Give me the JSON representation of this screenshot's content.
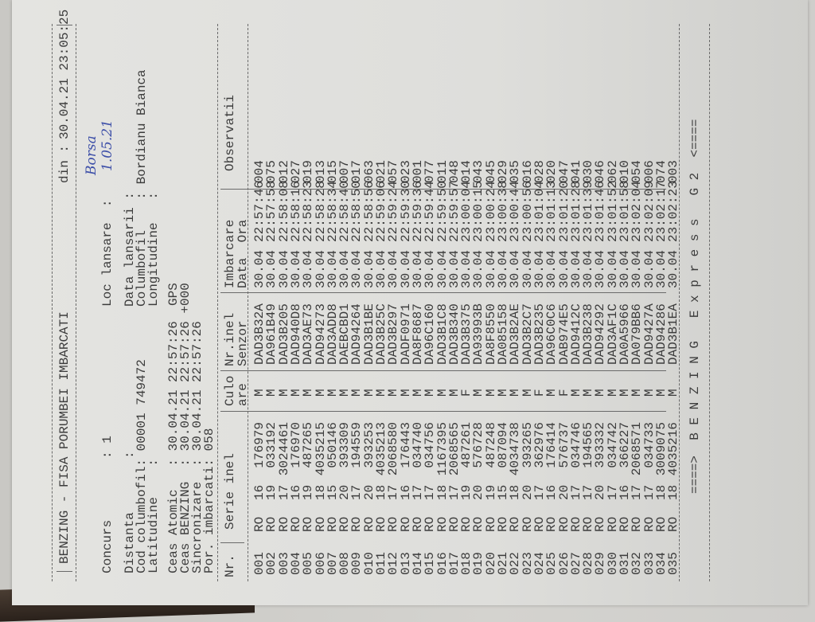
{
  "header": {
    "title": "BENZING - FISA PORUMBEI IMBARCATI",
    "din_label": "din :",
    "din_value": "30.04.21 23:05:25"
  },
  "info": {
    "concurs": "Concurs        : 1",
    "loc_lansare": "Loc lansare  :",
    "handwritten": [
      "Borsa",
      "1.05.21"
    ],
    "distanta": "Distanta       :",
    "cod_columbofil": "Cod columbofil: 00001 749472",
    "latitudine": "Latitudine    :",
    "data_lansarii": "Data lansarii :",
    "columbofil": "Columbofil    : Bordianu Bianca",
    "longitudine": "Longitudine   :",
    "ceas_atomic": "Ceas Atomic   : 30.04.21 22:57:26  GPS",
    "ceas_benzing": "Ceas BENZING  : 30.04.21 22:57:26 +000",
    "sincronizare": "Sincronizare  : 30.04.21 22:57:26",
    "por_imbarcati": "Por. imbarcati: 058"
  },
  "table": {
    "headers": {
      "nr": "Nr.",
      "serie": "Serie inel",
      "culoare_1": "Culo",
      "culoare_2": "are",
      "senzor_1": "Nr.inel",
      "senzor_2": "Senzor",
      "imbarcare_1": "Imbarcare",
      "imbarcare_2": "Data  Ora",
      "observatii": "Observatii"
    }
  },
  "rows": [
    {
      "nr": "001",
      "tara": "RO",
      "an": "16",
      "inel": "176979",
      "cul": "M",
      "senzor": "DAD3B32A",
      "data": "30.04",
      "ora": "22:57:46",
      "obs": "004"
    },
    {
      "nr": "002",
      "tara": "RO",
      "an": "19",
      "inel": "033192",
      "cul": "M",
      "senzor": "DA961B49",
      "data": "30.04",
      "ora": "22:57:58",
      "obs": "075"
    },
    {
      "nr": "003",
      "tara": "RO",
      "an": "17",
      "inel": "3024461",
      "cul": "M",
      "senzor": "DAD3B205",
      "data": "30.04",
      "ora": "22:58:08",
      "obs": "012"
    },
    {
      "nr": "004",
      "tara": "RO",
      "an": "16",
      "inel": "176970",
      "cul": "M",
      "senzor": "DAD940D8",
      "data": "30.04",
      "ora": "22:58:16",
      "obs": "027"
    },
    {
      "nr": "005",
      "tara": "RO",
      "an": "19",
      "inel": "487265",
      "cul": "M",
      "senzor": "DAD3AE73",
      "data": "30.04",
      "ora": "22:58:23",
      "obs": "019"
    },
    {
      "nr": "006",
      "tara": "RO",
      "an": "18",
      "inel": "4035215",
      "cul": "M",
      "senzor": "DAD94273",
      "data": "30.04",
      "ora": "22:58:28",
      "obs": "013"
    },
    {
      "nr": "007",
      "tara": "RO",
      "an": "15",
      "inel": "050146",
      "cul": "M",
      "senzor": "DAD3ADD8",
      "data": "30.04",
      "ora": "22:58:34",
      "obs": "015"
    },
    {
      "nr": "008",
      "tara": "RO",
      "an": "20",
      "inel": "393309",
      "cul": "M",
      "senzor": "DAEBCBD1",
      "data": "30.04",
      "ora": "22:58:40",
      "obs": "007"
    },
    {
      "nr": "009",
      "tara": "RO",
      "an": "17",
      "inel": "194559",
      "cul": "M",
      "senzor": "DAD94264",
      "data": "30.04",
      "ora": "22:58:50",
      "obs": "017"
    },
    {
      "nr": "010",
      "tara": "RO",
      "an": "20",
      "inel": "393253",
      "cul": "M",
      "senzor": "DAD3B1BE",
      "data": "30.04",
      "ora": "22:58:56",
      "obs": "063"
    },
    {
      "nr": "011",
      "tara": "RO",
      "an": "18",
      "inel": "4035213",
      "cul": "M",
      "senzor": "DAD3B25C",
      "data": "30.04",
      "ora": "22:59:06",
      "obs": "021"
    },
    {
      "nr": "012",
      "tara": "RO",
      "an": "17",
      "inel": "2068580",
      "cul": "M",
      "senzor": "DAD3B297",
      "data": "30.04",
      "ora": "22:59:24",
      "obs": "057"
    },
    {
      "nr": "013",
      "tara": "RO",
      "an": "16",
      "inel": "176443",
      "cul": "M",
      "senzor": "DADF0971",
      "data": "30.04",
      "ora": "22:59:30",
      "obs": "023"
    },
    {
      "nr": "014",
      "tara": "RO",
      "an": "17",
      "inel": "034740",
      "cul": "M",
      "senzor": "DA8F8687",
      "data": "30.04",
      "ora": "22:59:36",
      "obs": "001"
    },
    {
      "nr": "015",
      "tara": "RO",
      "an": "17",
      "inel": "034756",
      "cul": "M",
      "senzor": "DA96C160",
      "data": "30.04",
      "ora": "22:59:44",
      "obs": "077"
    },
    {
      "nr": "016",
      "tara": "RO",
      "an": "18",
      "inel": "1167395",
      "cul": "M",
      "senzor": "DAD3B1C8",
      "data": "30.04",
      "ora": "22:59:50",
      "obs": "011"
    },
    {
      "nr": "017",
      "tara": "RO",
      "an": "17",
      "inel": "2068565",
      "cul": "M",
      "senzor": "DAD3B340",
      "data": "30.04",
      "ora": "22:59:57",
      "obs": "048"
    },
    {
      "nr": "018",
      "tara": "RO",
      "an": "19",
      "inel": "487261",
      "cul": "F",
      "senzor": "DAD3B375",
      "data": "30.04",
      "ora": "23:00:04",
      "obs": "014"
    },
    {
      "nr": "019",
      "tara": "RO",
      "an": "20",
      "inel": "576728",
      "cul": "M",
      "senzor": "DA93993B",
      "data": "30.04",
      "ora": "23:00:15",
      "obs": "043"
    },
    {
      "nr": "020",
      "tara": "RO",
      "an": "19",
      "inel": "487248",
      "cul": "M",
      "senzor": "DA8F8550",
      "data": "30.04",
      "ora": "23:00:24",
      "obs": "045"
    },
    {
      "nr": "021",
      "tara": "RO",
      "an": "15",
      "inel": "087094",
      "cul": "M",
      "senzor": "DA085158",
      "data": "30.04",
      "ora": "23:00:38",
      "obs": "029"
    },
    {
      "nr": "022",
      "tara": "RO",
      "an": "18",
      "inel": "4034738",
      "cul": "M",
      "senzor": "DAD3B2AE",
      "data": "30.04",
      "ora": "23:00:44",
      "obs": "035"
    },
    {
      "nr": "023",
      "tara": "RO",
      "an": "20",
      "inel": "393265",
      "cul": "M",
      "senzor": "DAD3B2C7",
      "data": "30.04",
      "ora": "23:00:56",
      "obs": "016"
    },
    {
      "nr": "024",
      "tara": "RO",
      "an": "17",
      "inel": "362976",
      "cul": "F",
      "senzor": "DAD3B235",
      "data": "30.04",
      "ora": "23:01:04",
      "obs": "028"
    },
    {
      "nr": "025",
      "tara": "RO",
      "an": "16",
      "inel": "176414",
      "cul": "M",
      "senzor": "DA96C0C6",
      "data": "30.04",
      "ora": "23:01:13",
      "obs": "020"
    },
    {
      "nr": "026",
      "tara": "RO",
      "an": "20",
      "inel": "576737",
      "cul": "F",
      "senzor": "DAB974E5",
      "data": "30.04",
      "ora": "23:01:20",
      "obs": "047"
    },
    {
      "nr": "027",
      "tara": "RO",
      "an": "17",
      "inel": "034746",
      "cul": "M",
      "senzor": "DAD9412C",
      "data": "30.04",
      "ora": "23:01:28",
      "obs": "041"
    },
    {
      "nr": "028",
      "tara": "RO",
      "an": "17",
      "inel": "194565",
      "cul": "M",
      "senzor": "DAD3B238",
      "data": "30.04",
      "ora": "23:01:39",
      "obs": "030"
    },
    {
      "nr": "029",
      "tara": "RO",
      "an": "20",
      "inel": "393332",
      "cul": "M",
      "senzor": "DAD94292",
      "data": "30.04",
      "ora": "23:01:46",
      "obs": "046"
    },
    {
      "nr": "030",
      "tara": "RO",
      "an": "17",
      "inel": "034742",
      "cul": "M",
      "senzor": "DAD3AF1C",
      "data": "30.04",
      "ora": "23:01:52",
      "obs": "062"
    },
    {
      "nr": "031",
      "tara": "RO",
      "an": "16",
      "inel": "366227",
      "cul": "M",
      "senzor": "DA0A5966",
      "data": "30.04",
      "ora": "23:01:58",
      "obs": "010"
    },
    {
      "nr": "032",
      "tara": "RO",
      "an": "17",
      "inel": "2068571",
      "cul": "M",
      "senzor": "DA079BB6",
      "data": "30.04",
      "ora": "23:02:04",
      "obs": "054"
    },
    {
      "nr": "033",
      "tara": "RO",
      "an": "17",
      "inel": "034733",
      "cul": "M",
      "senzor": "DAD9427A",
      "data": "30.04",
      "ora": "23:02:09",
      "obs": "006"
    },
    {
      "nr": "034",
      "tara": "RO",
      "an": "18",
      "inel": "3009075",
      "cul": "M",
      "senzor": "DAD94286",
      "data": "30.04",
      "ora": "23:02:17",
      "obs": "074"
    },
    {
      "nr": "035",
      "tara": "RO",
      "an": "18",
      "inel": "4035216",
      "cul": "M",
      "senzor": "DAD3B1EA",
      "data": "30.04",
      "ora": "23:02:23",
      "obs": "003"
    }
  ],
  "footer": "====>  B E N Z I N G   E x p r e s s   G 2  <===="
}
